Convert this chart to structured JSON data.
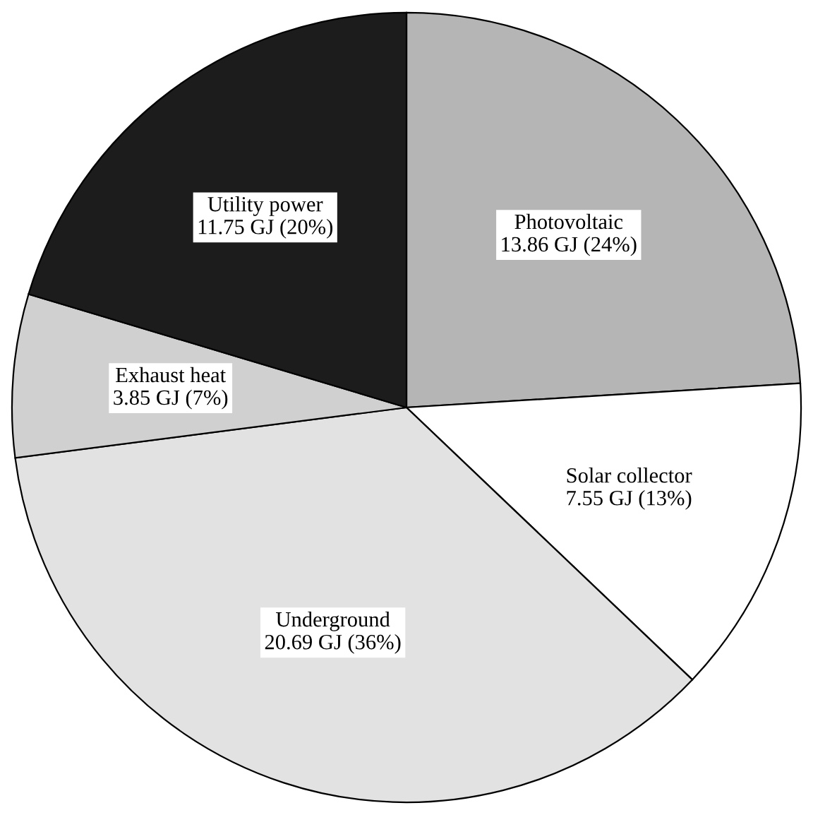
{
  "chart_data": {
    "type": "pie",
    "categories": [
      "Photovoltaic",
      "Solar collector",
      "Underground",
      "Exhaust heat",
      "Utility power"
    ],
    "values": [
      13.86,
      7.55,
      20.69,
      3.85,
      11.75
    ],
    "value_labels": [
      "13.86 GJ (24%)",
      "7.55 GJ (13%)",
      "20.69 GJ (36%)",
      "3.85 GJ (7%)",
      "11.75 GJ (20%)"
    ],
    "colors": [
      "#b5b5b5",
      "#ffffff",
      "#e2e2e2",
      "#d0d0d0",
      "#1c1c1c"
    ],
    "legend": false
  }
}
